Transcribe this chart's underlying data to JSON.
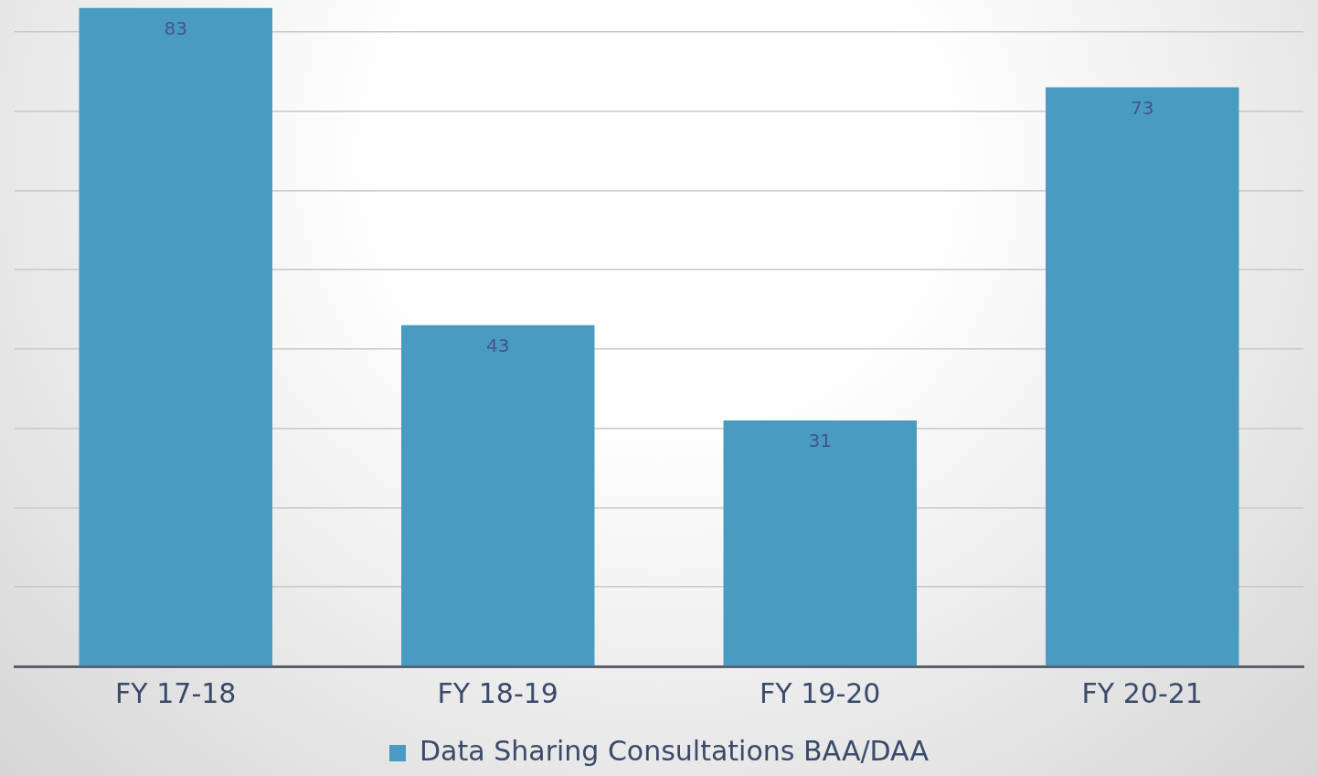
{
  "chart_data": {
    "type": "bar",
    "categories": [
      "FY 17-18",
      "FY 18-19",
      "FY 19-20",
      "FY 20-21"
    ],
    "series": [
      {
        "name": "Data Sharing Consultations BAA/DAA",
        "color": "#4a9bc0",
        "values": [
          83,
          43,
          31,
          73
        ]
      }
    ],
    "ylim": [
      0,
      84
    ],
    "yticks": [
      0,
      10,
      20,
      30,
      40,
      50,
      60,
      70,
      80
    ],
    "tick_labels": "x",
    "grid": "y",
    "legend": "bottom",
    "data_labels": true
  }
}
